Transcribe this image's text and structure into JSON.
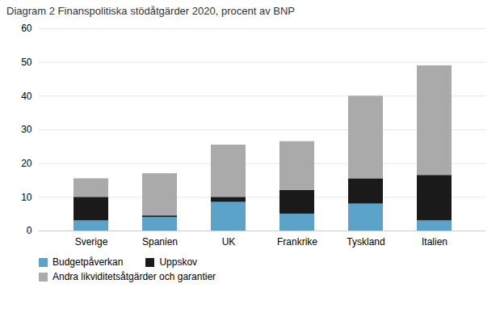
{
  "chart_data": {
    "type": "bar",
    "stacked": true,
    "title": "Diagram 2 Finanspolitiska stödåtgärder 2020, procent av BNP",
    "categories": [
      "Sverige",
      "Spanien",
      "UK",
      "Frankrike",
      "Tyskland",
      "Italien"
    ],
    "series": [
      {
        "name": "Budgetpåverkan",
        "color": "#5BA3C9",
        "values": [
          3.0,
          4.0,
          8.5,
          5.0,
          8.0,
          3.0
        ]
      },
      {
        "name": "Uppskov",
        "color": "#1A1A1A",
        "values": [
          7.0,
          0.5,
          1.5,
          7.0,
          7.5,
          13.5
        ]
      },
      {
        "name": "Andra likviditetsåtgärder och garantier",
        "color": "#AAAAAA",
        "values": [
          5.5,
          12.5,
          15.5,
          14.5,
          24.5,
          32.5
        ]
      }
    ],
    "ylim": [
      0,
      60
    ],
    "yticks": [
      0,
      10,
      20,
      30,
      40,
      50,
      60
    ],
    "grid": true,
    "legend": "bottom"
  }
}
